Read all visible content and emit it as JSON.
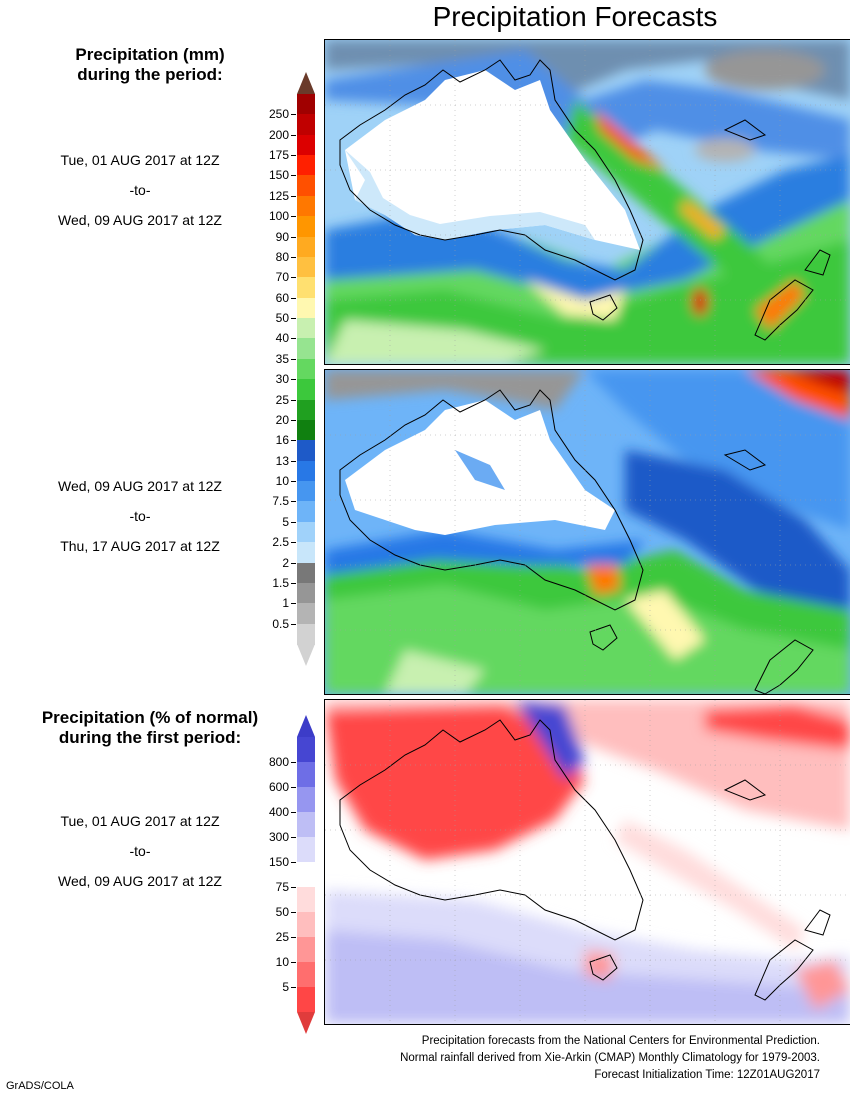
{
  "title": "Precipitation Forecasts",
  "section1": {
    "heading_line1": "Precipitation (mm)",
    "heading_line2": "during the period:",
    "period1": {
      "start": "Tue, 01 AUG 2017 at 12Z",
      "sep": "-to-",
      "end": "Wed, 09 AUG 2017 at 12Z"
    },
    "period2": {
      "start": "Wed, 09 AUG 2017 at 12Z",
      "sep": "-to-",
      "end": "Thu, 17 AUG 2017 at 12Z"
    },
    "colorbar": {
      "labels": [
        "250",
        "200",
        "175",
        "150",
        "125",
        "100",
        "90",
        "80",
        "70",
        "60",
        "50",
        "40",
        "35",
        "30",
        "25",
        "20",
        "16",
        "13",
        "10",
        "7.5",
        "5",
        "2.5",
        "2",
        "1.5",
        "1",
        "0.5"
      ],
      "colors": [
        "#a00000",
        "#c00000",
        "#dc0000",
        "#ff2000",
        "#ff5000",
        "#ff7800",
        "#ff9600",
        "#ffaa20",
        "#ffc040",
        "#ffe070",
        "#fff8b0",
        "#c8f0b0",
        "#96e490",
        "#64d860",
        "#3cc83c",
        "#20a020",
        "#108010",
        "#1e5ac8",
        "#2878e6",
        "#4696f0",
        "#6eb4f8",
        "#a0d2fa",
        "#c8e6fa",
        "#787878",
        "#969696",
        "#b4b4b4",
        "#d2d2d2"
      ],
      "top_color": "#6a3a2a"
    }
  },
  "section2": {
    "heading_line1": "Precipitation (% of normal)",
    "heading_line2": "during the first period:",
    "period": {
      "start": "Tue, 01 AUG 2017 at 12Z",
      "sep": "-to-",
      "end": "Wed, 09 AUG 2017 at 12Z"
    },
    "colorbar": {
      "labels": [
        "800",
        "600",
        "400",
        "300",
        "150",
        "75",
        "50",
        "25",
        "10",
        "5"
      ],
      "colors": [
        "#4646d2",
        "#6e6ee6",
        "#9696f0",
        "#bebef5",
        "#dcdcfa",
        "#ffffff",
        "#ffdcdc",
        "#ffbebe",
        "#ff9696",
        "#ff6e6e",
        "#ff4646"
      ],
      "top_color": "#3c3cc8",
      "bottom_color": "#e03c3c"
    }
  },
  "footer": {
    "line1": "Precipitation forecasts from the National Centers for Environmental Prediction.",
    "line2": "Normal rainfall derived from Xie-Arkin (CMAP) Monthly Climatology for 1979-2003.",
    "line3": "Forecast Initialization Time: 12Z01AUG2017"
  },
  "credit": "GrADS/COLA"
}
